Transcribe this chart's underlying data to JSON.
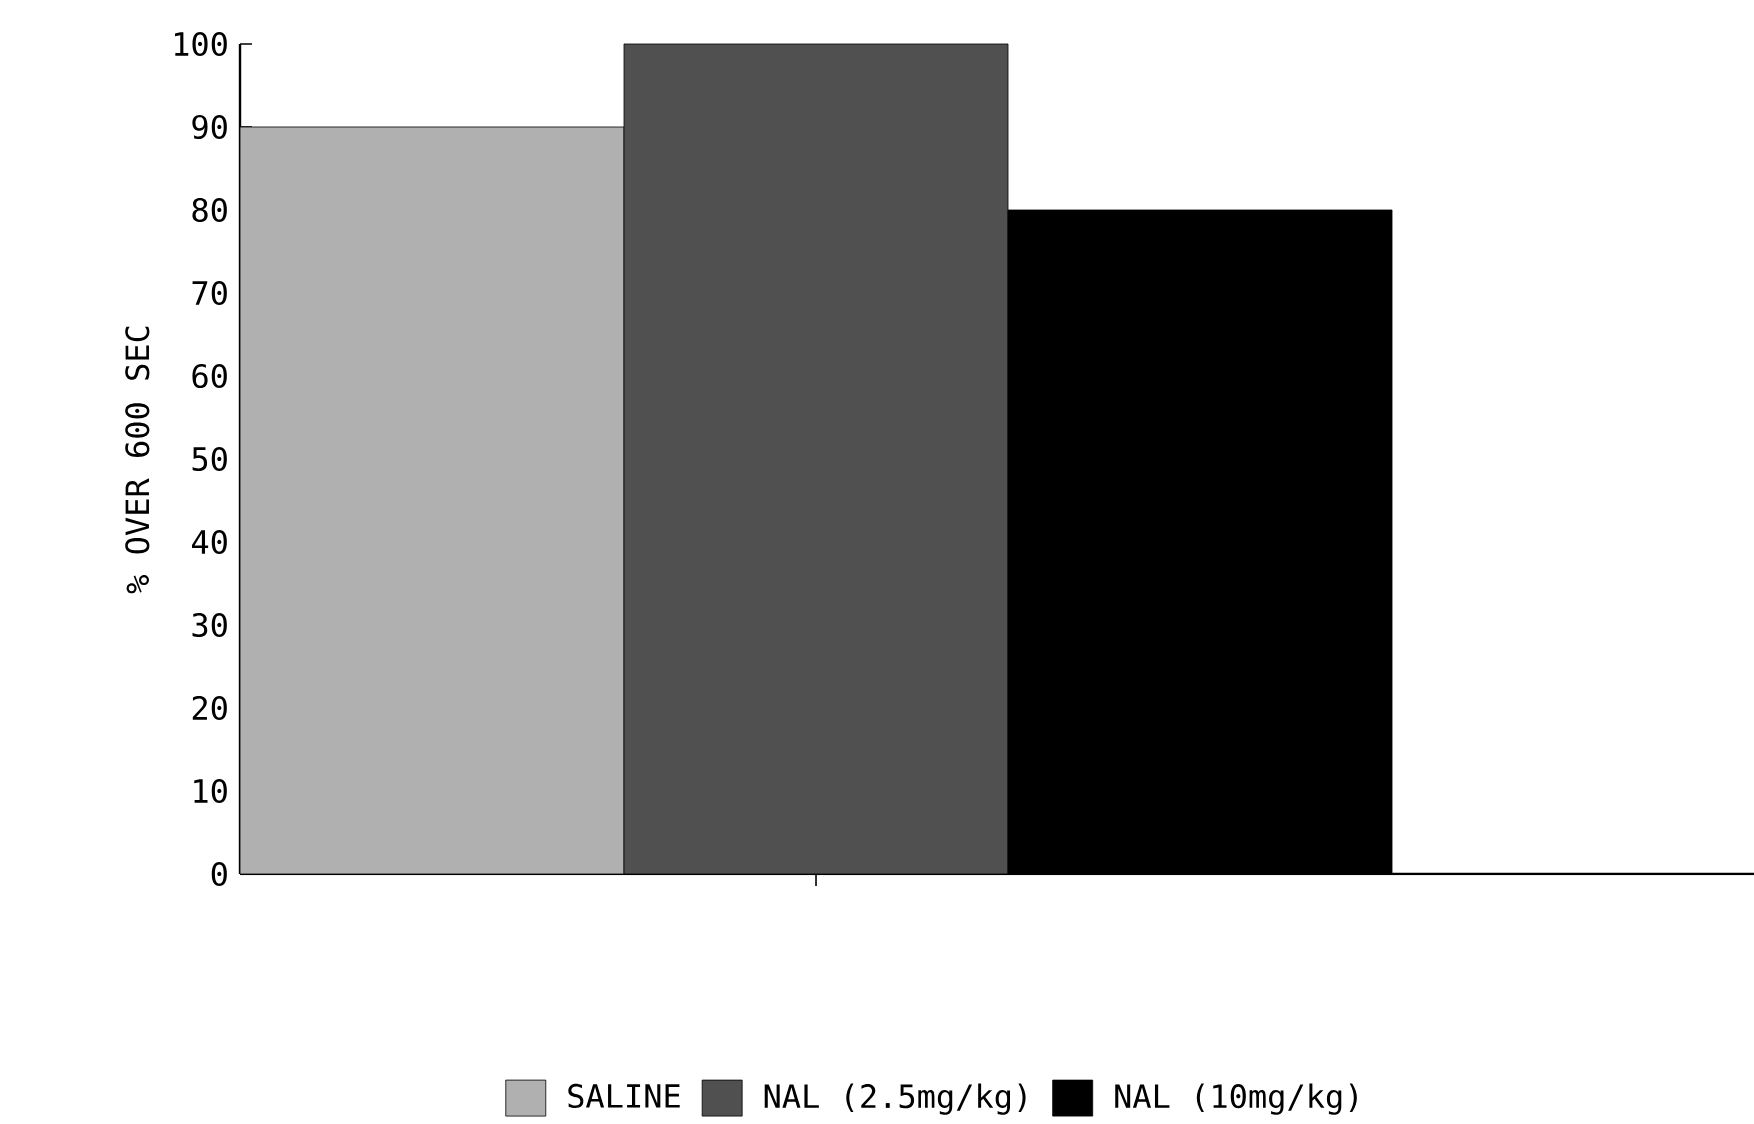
{
  "chart_data": {
    "type": "bar",
    "ylabel": "% OVER 600 SEC",
    "categories": [
      null
    ],
    "series": [
      {
        "name": "SALINE",
        "color": "#b0b0b0",
        "values": [
          90
        ]
      },
      {
        "name": "NAL (2.5mg/kg)",
        "color": "#505050",
        "values": [
          100
        ]
      },
      {
        "name": "NAL (10mg/kg)",
        "color": "#000000",
        "values": [
          80
        ]
      }
    ],
    "ylim": [
      0,
      100
    ],
    "yticks": [
      0,
      10,
      20,
      30,
      40,
      50,
      60,
      70,
      80,
      90,
      100
    ],
    "grid": false,
    "legend": "bottom",
    "tick_labels": "y"
  }
}
